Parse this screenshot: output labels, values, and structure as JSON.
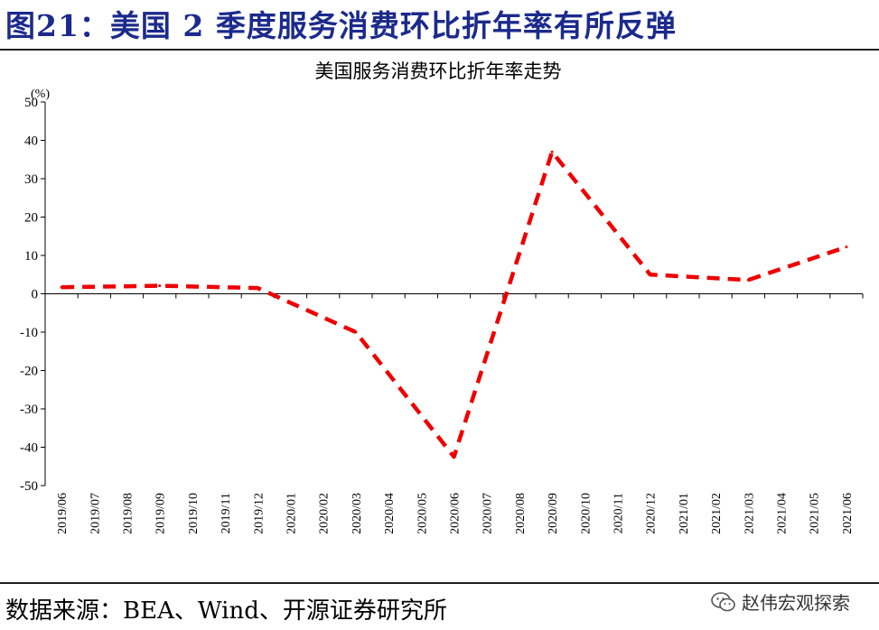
{
  "figure": {
    "title": "图21：美国 2 季度服务消费环比折年率有所反弹",
    "source": "数据来源：BEA、Wind、开源证券研究所",
    "watermark": "赵伟宏观探索",
    "watermark_icon": "wechat-icon"
  },
  "chart_data": {
    "type": "line",
    "title": "美国服务消费环比折年率走势",
    "ylabel": "(%)",
    "xlabel": "",
    "ylim": [
      -50,
      50
    ],
    "yticks": [
      50,
      40,
      30,
      20,
      10,
      0,
      -10,
      -20,
      -30,
      -40,
      -50
    ],
    "grid": false,
    "categories": [
      "2019/06",
      "2019/07",
      "2019/08",
      "2019/09",
      "2019/10",
      "2019/11",
      "2019/12",
      "2020/01",
      "2020/02",
      "2020/03",
      "2020/04",
      "2020/05",
      "2020/06",
      "2020/07",
      "2020/08",
      "2020/09",
      "2020/10",
      "2020/11",
      "2020/12",
      "2021/01",
      "2021/02",
      "2021/03",
      "2021/04",
      "2021/05",
      "2021/06"
    ],
    "series": [
      {
        "name": "",
        "color": "#ee0000",
        "style": "dashed",
        "x": [
          "2019/06",
          "2019/09",
          "2019/12",
          "2020/03",
          "2020/06",
          "2020/09",
          "2020/12",
          "2021/03",
          "2021/06"
        ],
        "values": [
          1.7,
          2.1,
          1.5,
          -10.0,
          -42.5,
          37.0,
          5.0,
          3.6,
          12.2
        ]
      }
    ]
  }
}
